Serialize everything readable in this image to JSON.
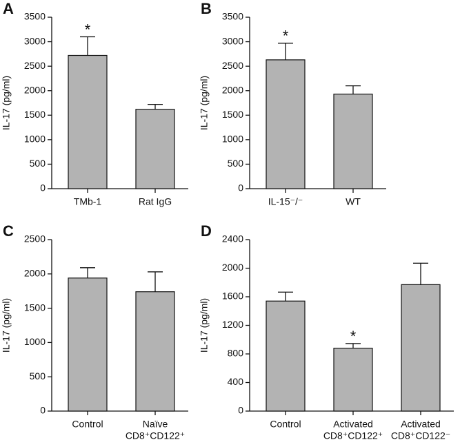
{
  "chart_data": [
    {
      "type": "bar",
      "panel": "A",
      "y_label": "IL-17 (pg/ml)",
      "color": "#b3b3b3",
      "categories": [
        [
          "TMb-1"
        ],
        [
          "Rat IgG"
        ]
      ],
      "values": [
        2720,
        1620
      ],
      "errors": [
        380,
        100
      ],
      "significance": [
        "*",
        null
      ],
      "ylim": [
        0,
        3500
      ],
      "yticks": [
        0,
        500,
        1000,
        1500,
        2000,
        2500,
        3000,
        3500
      ]
    },
    {
      "type": "bar",
      "panel": "B",
      "y_label": "IL-17 (pg/ml)",
      "color": "#b3b3b3",
      "categories": [
        [
          "IL-15⁻/⁻"
        ],
        [
          "WT"
        ]
      ],
      "values": [
        2630,
        1930
      ],
      "errors": [
        340,
        170
      ],
      "significance": [
        "*",
        null
      ],
      "ylim": [
        0,
        3500
      ],
      "yticks": [
        0,
        500,
        1000,
        1500,
        2000,
        2500,
        3000,
        3500
      ]
    },
    {
      "type": "bar",
      "panel": "C",
      "y_label": "IL-17 (pg/ml)",
      "color": "#b3b3b3",
      "categories": [
        [
          "Control"
        ],
        [
          "Naïve",
          "CD8⁺CD122⁺"
        ]
      ],
      "values": [
        1940,
        1740
      ],
      "errors": [
        150,
        290
      ],
      "significance": [
        null,
        null
      ],
      "ylim": [
        0,
        2500
      ],
      "yticks": [
        0,
        500,
        1000,
        1500,
        2000,
        2500
      ]
    },
    {
      "type": "bar",
      "panel": "D",
      "y_label": "IL-17 (pg/ml)",
      "color": "#b3b3b3",
      "categories": [
        [
          "Control"
        ],
        [
          "Activated",
          "CD8⁺CD122⁺"
        ],
        [
          "Activated",
          "CD8⁺CD122⁻"
        ]
      ],
      "values": [
        1540,
        880,
        1770
      ],
      "errors": [
        125,
        65,
        300
      ],
      "significance": [
        null,
        "*",
        null
      ],
      "ylim": [
        0,
        2400
      ],
      "yticks": [
        0,
        400,
        800,
        1200,
        1600,
        2000,
        2400
      ]
    }
  ]
}
